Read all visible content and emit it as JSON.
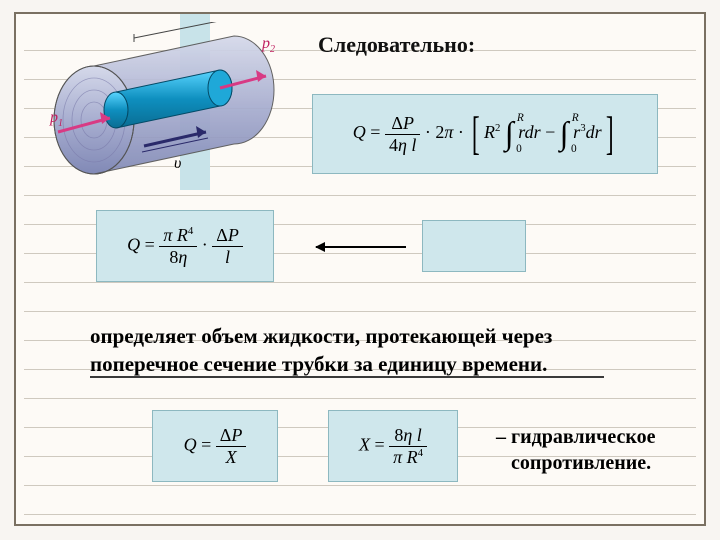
{
  "title": "Следовательно:",
  "formula1_html": "<span class='it'>Q</span> = <span class='frac'><span class='n'>Δ<span class='it'>P</span></span><span class='d'>4<span class='it'>η l</span></span></span> · 2<span class='it'>π</span> · <span class='brk'>[</span><span class='it'>R</span><span class='sup'>2</span> <span class='int'>∫<span class='lim-t'>R</span><span class='lim-b'>0</span></span>&nbsp;<span class='it'>rdr</span> − <span class='int'>∫<span class='lim-t'>R</span><span class='lim-b'>0</span></span>&nbsp;<span class='it'>r</span><span class='sup'>3</span><span class='it'>dr</span><span class='brk'>]</span>",
  "formula2_html": "<span class='it'>Q</span> = <span class='frac'><span class='n'><span class='it'>π R</span><span class='sup'>4</span></span><span class='d'>8<span class='it'>η</span></span></span> · <span class='frac'><span class='n'>Δ<span class='it'>P</span></span><span class='d'><span class='it'>l</span></span></span>",
  "formula4_html": "<span class='it'>Q</span> = <span class='frac'><span class='n'>Δ<span class='it'>P</span></span><span class='d'><span class='it'>X</span></span></span>",
  "formula5_html": "<span class='it'>X</span> = <span class='frac'><span class='n'>8<span class='it'>η l</span></span><span class='d'><span class='it'>π R</span><span class='sup'>4</span></span></span>",
  "description": "определяет объем жидкости, протекающей через поперечное сечение трубки за единицу времени.",
  "hydraulic": "– гидравлическое\n   сопротивление.",
  "labels": {
    "p1": "p",
    "p1s": "1",
    "p2": "p",
    "p2s": "2",
    "v": "υ"
  },
  "colors": {
    "formula_bg": "#cfe7ec",
    "formula_border": "#8db8c0",
    "slide_bg": "#fdfaf6",
    "page_bg": "#f8f5f2",
    "rule": "#cfc9bf",
    "cyl_outer": "#b4b9d4",
    "cyl_inner": "#1996c4",
    "arrow_red": "#d83a84"
  }
}
